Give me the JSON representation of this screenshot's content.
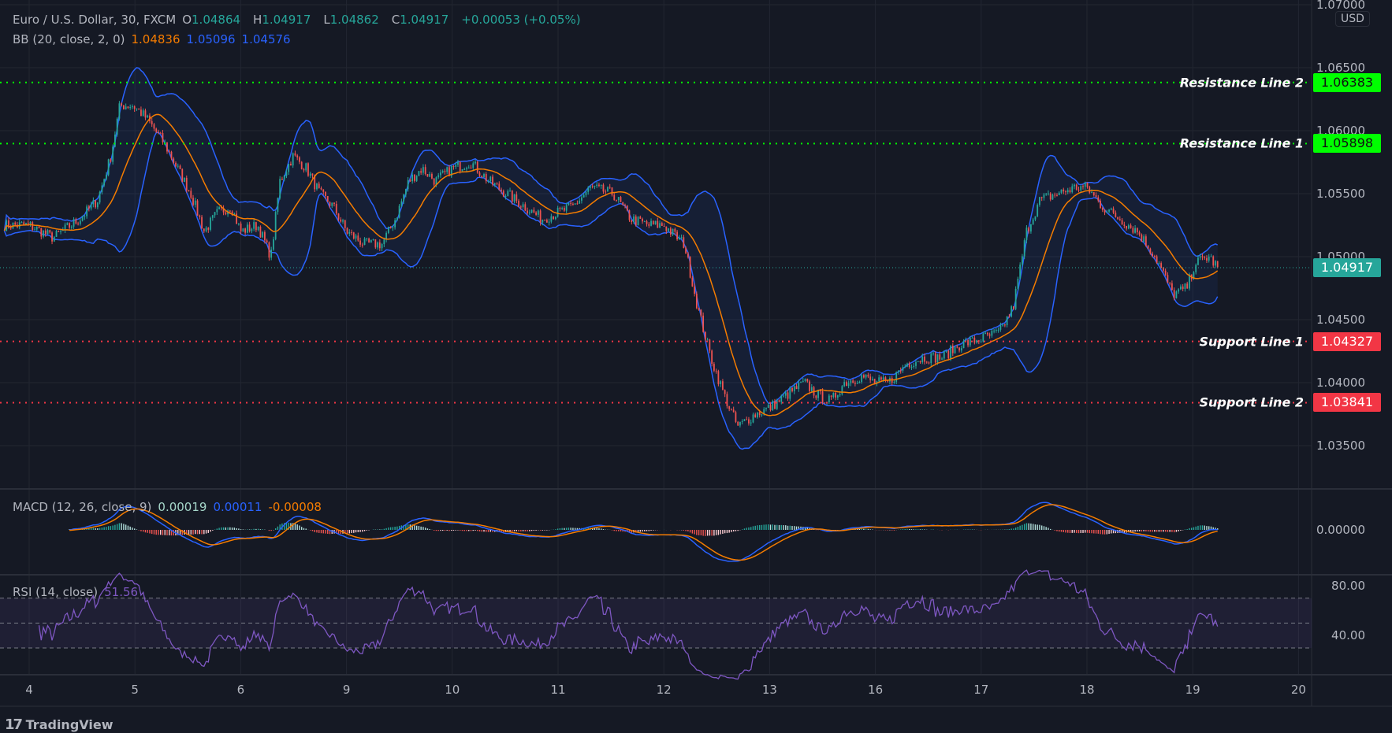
{
  "header": {
    "symbol": "Euro / U.S. Dollar, 30, FXCM",
    "o_label": "O",
    "o": "1.04864",
    "h_label": "H",
    "h": "1.04917",
    "l_label": "L",
    "l": "1.04862",
    "c_label": "C",
    "c": "1.04917",
    "change": "+0.00053 (+0.05%)"
  },
  "bb": {
    "label": "BB (20, close, 2, 0)",
    "basis": "1.04836",
    "upper": "1.05096",
    "lower": "1.04576"
  },
  "macd": {
    "label": "MACD (12, 26, close, 9)",
    "hist": "0.00019",
    "macd": "0.00011",
    "signal": "-0.00008",
    "axis": "0.00000"
  },
  "rsi": {
    "label": "RSI (14, close)",
    "value": "51.56",
    "axis": [
      "80.00",
      "40.00"
    ]
  },
  "price_axis": {
    "currency": "USD",
    "labels": [
      "1.07000",
      "1.06500",
      "1.06000",
      "1.05500",
      "1.05000",
      "1.04500",
      "1.04000",
      "1.03500"
    ]
  },
  "levels": [
    {
      "name": "Resistance Line 2",
      "price": "1.06383",
      "color": "#00ff00"
    },
    {
      "name": "Resistance Line 1",
      "price": "1.05898",
      "color": "#00ff00"
    },
    {
      "name": "Support Line 1",
      "price": "1.04327",
      "color": "#f23645"
    },
    {
      "name": "Support Line 2",
      "price": "1.03841",
      "color": "#f23645"
    }
  ],
  "last_price": "1.04917",
  "footer": {
    "brand": "TradingView"
  },
  "chart_data": {
    "type": "candlestick",
    "title": "Euro / U.S. Dollar, 30, FXCM",
    "ylim": [
      1.0335,
      1.0705
    ],
    "x_ticks": [
      "4",
      "5",
      "6",
      "9",
      "10",
      "11",
      "12",
      "13",
      "16",
      "17",
      "18",
      "19",
      "20"
    ],
    "close_keypoints": [
      [
        -0.235,
        1.0525
      ],
      [
        0,
        1.0525
      ],
      [
        0.227,
        1.0515
      ],
      [
        0.479,
        1.053
      ],
      [
        0.647,
        1.0545
      ],
      [
        0.773,
        1.058
      ],
      [
        0.857,
        1.062
      ],
      [
        0.983,
        1.062
      ],
      [
        1.109,
        1.061
      ],
      [
        1.277,
        1.059
      ],
      [
        1.403,
        1.057
      ],
      [
        1.529,
        1.055
      ],
      [
        1.655,
        1.052
      ],
      [
        1.782,
        1.0535
      ],
      [
        1.908,
        1.054
      ],
      [
        2.0,
        1.052
      ],
      [
        2.16,
        1.0525
      ],
      [
        2.286,
        1.05
      ],
      [
        2.37,
        1.056
      ],
      [
        2.496,
        1.058
      ],
      [
        2.622,
        1.057
      ],
      [
        2.748,
        1.055
      ],
      [
        2.874,
        1.054
      ],
      [
        3.0,
        1.052
      ],
      [
        3.168,
        1.051
      ],
      [
        3.336,
        1.051
      ],
      [
        3.462,
        1.053
      ],
      [
        3.588,
        1.056
      ],
      [
        3.714,
        1.057
      ],
      [
        3.84,
        1.056
      ],
      [
        4.0,
        1.057
      ],
      [
        4.176,
        1.0575
      ],
      [
        4.345,
        1.056
      ],
      [
        4.513,
        1.055
      ],
      [
        4.681,
        1.054
      ],
      [
        4.849,
        1.053
      ],
      [
        5.0,
        1.0535
      ],
      [
        5.143,
        1.054
      ],
      [
        5.311,
        1.0555
      ],
      [
        5.521,
        1.055
      ],
      [
        5.689,
        1.053
      ],
      [
        5.857,
        1.0525
      ],
      [
        6.0,
        1.0525
      ],
      [
        6.193,
        1.051
      ],
      [
        6.319,
        1.046
      ],
      [
        6.445,
        1.042
      ],
      [
        6.571,
        1.039
      ],
      [
        6.697,
        1.0365
      ],
      [
        6.866,
        1.0375
      ],
      [
        7.0,
        1.038
      ],
      [
        7.16,
        1.039
      ],
      [
        7.328,
        1.04
      ],
      [
        7.454,
        1.039
      ],
      [
        7.58,
        1.0385
      ],
      [
        7.706,
        1.04
      ],
      [
        7.874,
        1.0405
      ],
      [
        8.0,
        1.04
      ],
      [
        8.126,
        1.04
      ],
      [
        8.294,
        1.0415
      ],
      [
        8.462,
        1.042
      ],
      [
        8.63,
        1.042
      ],
      [
        8.798,
        1.043
      ],
      [
        9.0,
        1.0435
      ],
      [
        9.176,
        1.044
      ],
      [
        9.303,
        1.046
      ],
      [
        9.429,
        1.052
      ],
      [
        9.555,
        1.0545
      ],
      [
        9.723,
        1.055
      ],
      [
        9.891,
        1.0555
      ],
      [
        10.0,
        1.0555
      ],
      [
        10.143,
        1.054
      ],
      [
        10.311,
        1.053
      ],
      [
        10.479,
        1.052
      ],
      [
        10.647,
        1.05
      ],
      [
        10.815,
        1.047
      ],
      [
        10.941,
        1.0475
      ],
      [
        11.025,
        1.0495
      ],
      [
        11.151,
        1.05
      ],
      [
        11.235,
        1.04917
      ]
    ],
    "indicators": [
      "BB(20,2)",
      "MACD(12,26,9)",
      "RSI(14)"
    ],
    "rsi_bands": [
      70,
      50,
      30
    ],
    "colors": {
      "up": "#26a69a",
      "down": "#ef5350",
      "bb_basis": "#f57c00",
      "bb_band": "#2962ff",
      "rsi": "#7e57c2"
    }
  }
}
